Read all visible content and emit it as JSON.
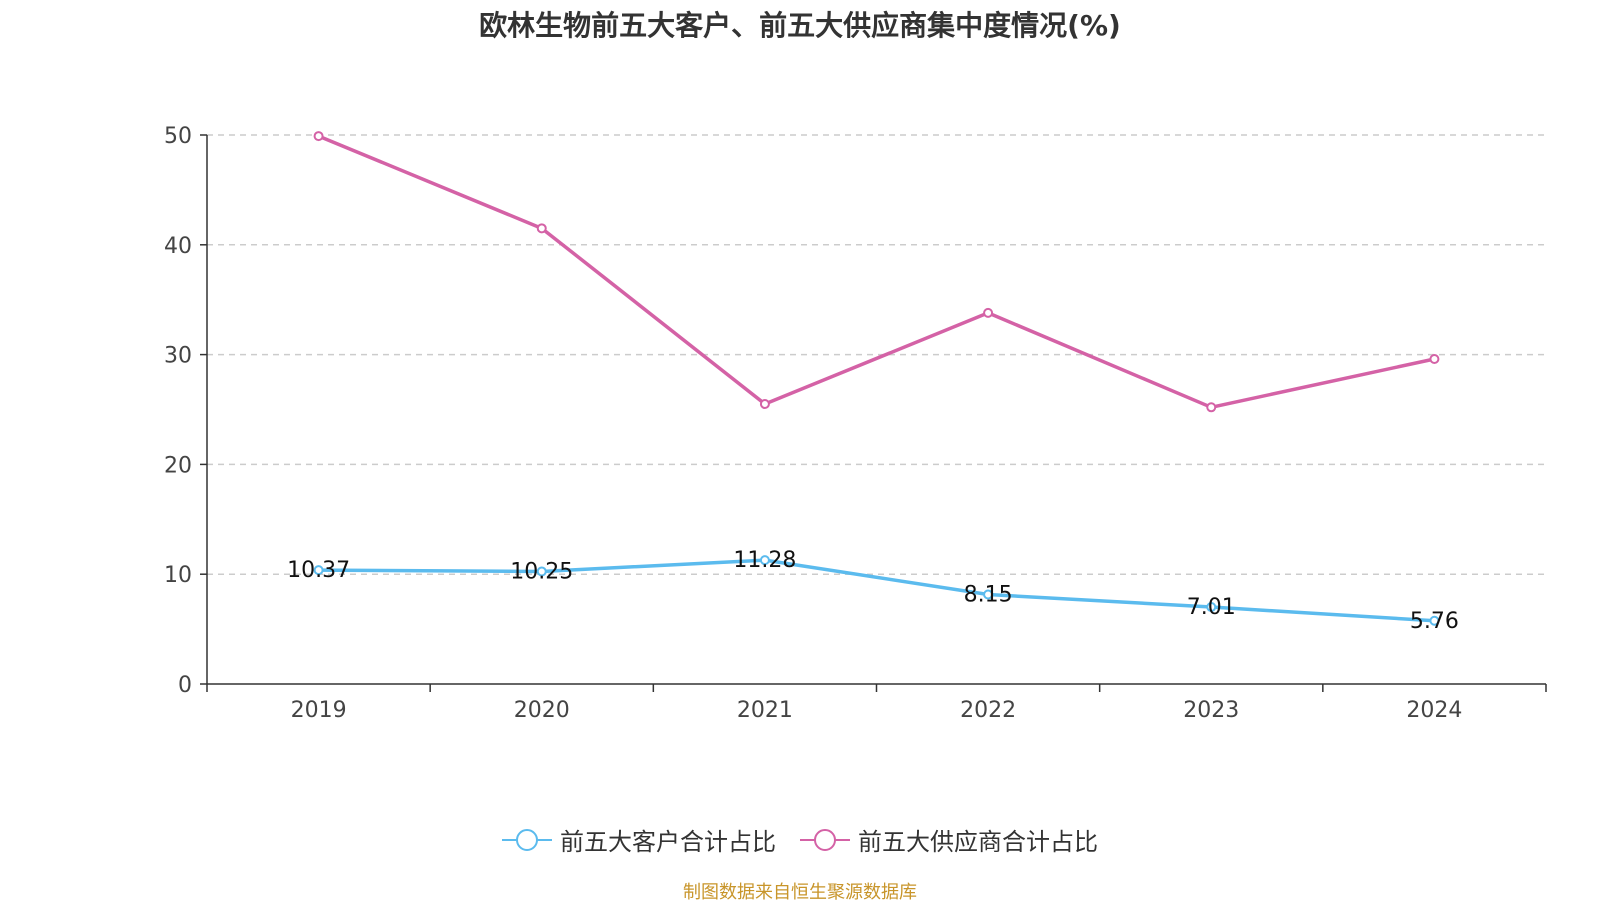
{
  "chart_data": {
    "type": "line",
    "title": "欧林生物前五大客户、前五大供应商集中度情况(%)",
    "categories": [
      "2019",
      "2020",
      "2021",
      "2022",
      "2023",
      "2024"
    ],
    "ylim": [
      0,
      50
    ],
    "yticks": [
      0,
      10,
      20,
      30,
      40,
      50
    ],
    "grid": true,
    "legend_position": "bottom",
    "series": [
      {
        "name": "前五大客户合计占比",
        "color": "#5bbbee",
        "values": [
          10.37,
          10.25,
          11.28,
          8.15,
          7.01,
          5.76
        ],
        "labels": [
          "10.37",
          "10.25",
          "11.28",
          "8.15",
          "7.01",
          "5.76"
        ]
      },
      {
        "name": "前五大供应商合计占比",
        "color": "#d462a6",
        "values": [
          49.9,
          41.5,
          25.5,
          33.8,
          25.2,
          29.6
        ]
      }
    ]
  },
  "source": "制图数据来自恒生聚源数据库"
}
